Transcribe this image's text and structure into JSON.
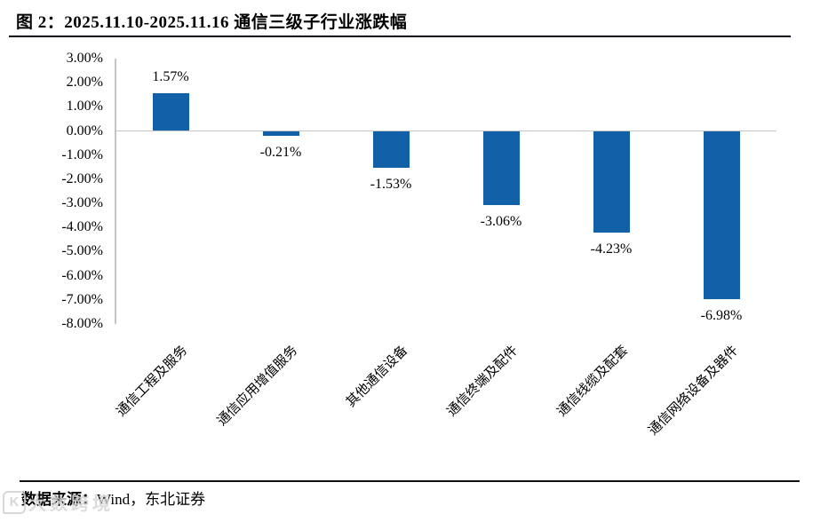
{
  "figure": {
    "title": "图 2：2025.11.10-2025.11.16 通信三级子行业涨跌幅",
    "source_label": "数据来源：",
    "source_value": "Wind，东北证券",
    "watermark_icon": "K",
    "watermark_text": "大数跨境"
  },
  "chart_data": {
    "type": "bar",
    "title": "2025.11.10-2025.11.16 通信三级子行业涨跌幅",
    "categories": [
      "通信工程及服务",
      "通信应用增值服务",
      "其他通信设备",
      "通信终端及配件",
      "通信线缆及配套",
      "通信网络设备及器件"
    ],
    "values": [
      1.57,
      -0.21,
      -1.53,
      -3.06,
      -4.23,
      -6.98
    ],
    "value_labels": [
      "1.57%",
      "-0.21%",
      "-1.53%",
      "-3.06%",
      "-4.23%",
      "-6.98%"
    ],
    "yticks": [
      "3.00%",
      "2.00%",
      "1.00%",
      "0.00%",
      "-1.00%",
      "-2.00%",
      "-3.00%",
      "-4.00%",
      "-5.00%",
      "-6.00%",
      "-7.00%",
      "-8.00%"
    ],
    "ylim": [
      -8,
      3
    ],
    "xlabel": "",
    "ylabel": "",
    "grid": false,
    "legend_position": "none",
    "bar_color": "#1160A8",
    "axis_color": "#C6C6C6",
    "label_color": "#000000"
  }
}
